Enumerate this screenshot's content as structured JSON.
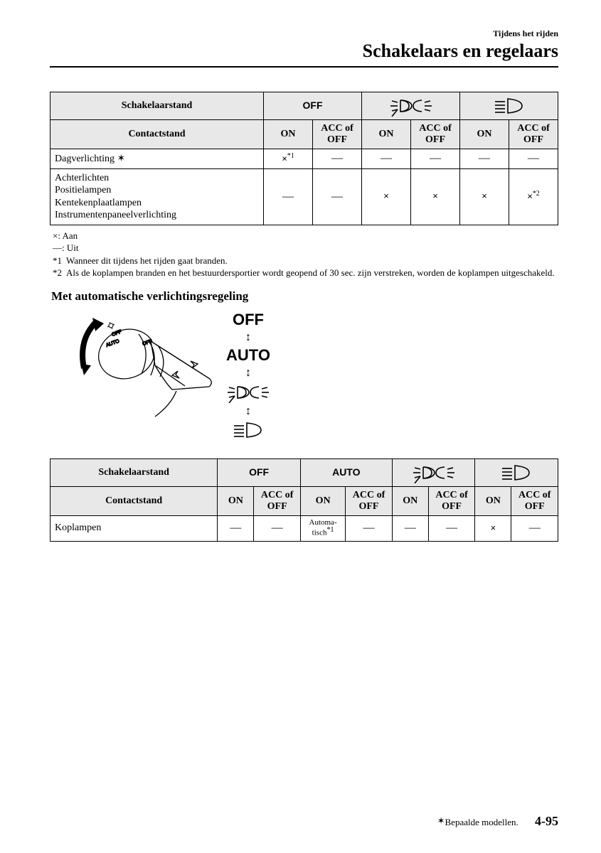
{
  "header": {
    "small": "Tijdens het rijden",
    "large": "Schakelaars en regelaars"
  },
  "table1": {
    "head": {
      "switchLabel": "Schakelaarstand",
      "contactLabel": "Contactstand",
      "off": "OFF",
      "on": "ON",
      "accOff": "ACC of OFF"
    },
    "rows": [
      {
        "label": "Dagverlichting",
        "star": "✶",
        "cells": [
          {
            "t": "×",
            "sup": "*1"
          },
          {
            "t": "—"
          },
          {
            "t": "—"
          },
          {
            "t": "—"
          },
          {
            "t": "—"
          },
          {
            "t": "—"
          }
        ]
      },
      {
        "label": "Achterlichten\nPositielampen\nKentekenplaatlampen\nInstrumentenpaneelverlichting",
        "cells": [
          {
            "t": "—"
          },
          {
            "t": "—"
          },
          {
            "t": "×"
          },
          {
            "t": "×"
          },
          {
            "t": "×"
          },
          {
            "t": "×",
            "sup": "*2"
          }
        ]
      }
    ]
  },
  "legend": {
    "on": "×: Aan",
    "off": "—: Uit",
    "n1k": "*1",
    "n1t": "Wanneer dit tijdens het rijden gaat branden.",
    "n2k": "*2",
    "n2t": "Als de koplampen branden en het bestuurdersportier wordt geopend of 30 sec. zijn verstreken, worden de koplampen uitgeschakeld."
  },
  "subheading": "Met automatische verlichtingsregeling",
  "scale": {
    "off": "OFF",
    "auto": "AUTO"
  },
  "table2": {
    "head": {
      "switchLabel": "Schakelaarstand",
      "contactLabel": "Contactstand",
      "off": "OFF",
      "auto": "AUTO",
      "on": "ON",
      "accOff": "ACC of OFF"
    },
    "rows": [
      {
        "label": "Koplampen",
        "cells": [
          {
            "t": "—"
          },
          {
            "t": "—"
          },
          {
            "t": "Automatisch",
            "sup": "*1",
            "small": true
          },
          {
            "t": "—"
          },
          {
            "t": "—"
          },
          {
            "t": "—"
          },
          {
            "t": "×"
          },
          {
            "t": "—"
          }
        ]
      }
    ]
  },
  "footer": {
    "star": "✶",
    "note": "Bepaalde modellen.",
    "page": "4-95"
  },
  "colors": {
    "headerBg": "#e8e8e8",
    "border": "#000000",
    "text": "#000000",
    "bg": "#ffffff"
  }
}
